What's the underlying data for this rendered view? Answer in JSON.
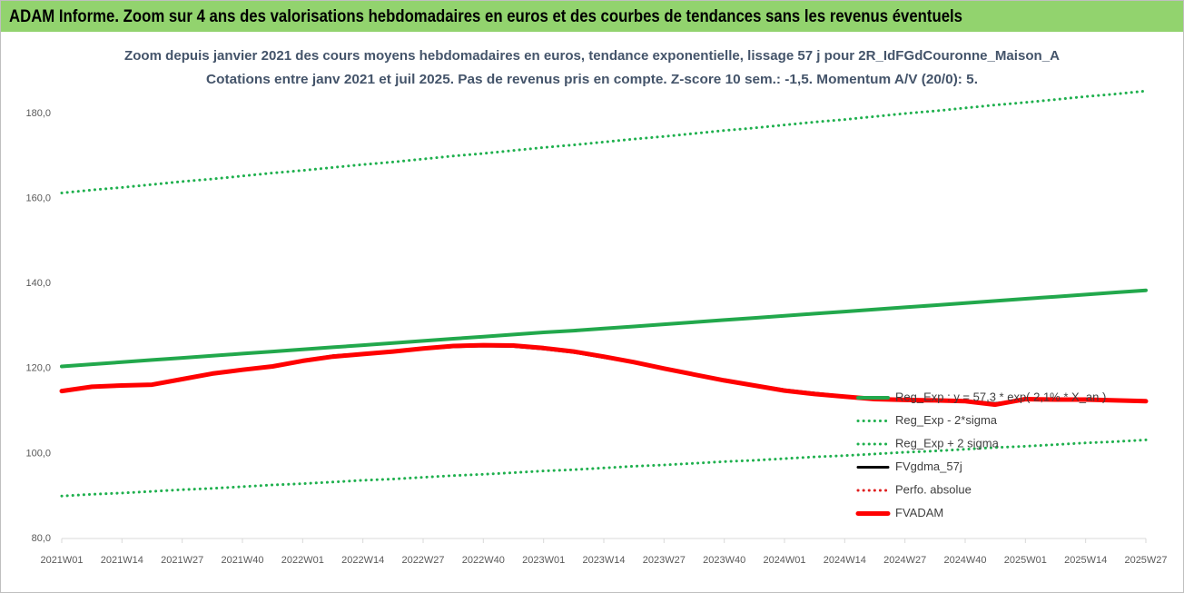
{
  "header": {
    "title": "ADAM Informe. Zoom sur 4 ans des valorisations hebdomadaires en euros et des courbes de tendances sans les revenus éventuels"
  },
  "chart_data": {
    "type": "line",
    "title": "Zoom depuis janvier 2021 des cours moyens hebdomadaires en euros, tendance exponentielle, lissage 57 j pour 2R_IdFGdCouronne_Maison_A",
    "subtitle": "Cotations entre janv 2021 et juil 2025. Pas de revenus pris en compte. Z-score 10 sem.: -1,5. Momentum A/V (20/0): 5.",
    "categories": [
      "2021W01",
      null,
      "2021W14",
      null,
      "2021W27",
      null,
      "2021W40",
      null,
      "2022W01",
      null,
      "2022W14",
      null,
      "2022W27",
      null,
      "2022W40",
      null,
      "2023W01",
      null,
      "2023W14",
      null,
      "2023W27",
      null,
      "2023W40",
      null,
      "2024W01",
      null,
      "2024W14",
      null,
      "2024W27",
      null,
      "2024W40",
      null,
      "2025W01",
      null,
      "2025W14",
      null,
      "2025W27"
    ],
    "ylim": [
      80,
      180
    ],
    "yticks": [
      {
        "value": 80,
        "label": "80,0"
      },
      {
        "value": 100,
        "label": "100,0"
      },
      {
        "value": 120,
        "label": "120,0"
      },
      {
        "value": 140,
        "label": "140,0"
      },
      {
        "value": 160,
        "label": "160,0"
      },
      {
        "value": 180,
        "label": "180,0"
      }
    ],
    "grid": false,
    "legend": "right",
    "series": [
      {
        "name": "Reg_Exp : y = 57,3 * exp( 2,1% * X_an )",
        "color": "#22a84c",
        "style": "solid",
        "values": [
          120.5,
          121.0,
          121.5,
          122.0,
          122.5,
          123.0,
          123.5,
          124.0,
          124.5,
          125.0,
          125.5,
          126.0,
          126.5,
          127.0,
          127.5,
          128.0,
          128.5,
          128.9,
          129.4,
          129.9,
          130.4,
          130.9,
          131.4,
          131.9,
          132.4,
          132.9,
          133.4,
          133.9,
          134.4,
          134.9,
          135.4,
          135.9,
          136.4,
          136.9,
          137.4,
          137.9,
          138.4
        ]
      },
      {
        "name": "Reg_Exp - 2*sigma",
        "color": "#1fb04e",
        "style": "dotted",
        "values": [
          90.0,
          90.4,
          90.7,
          91.1,
          91.5,
          91.8,
          92.2,
          92.6,
          92.9,
          93.3,
          93.7,
          94.0,
          94.4,
          94.8,
          95.1,
          95.5,
          95.9,
          96.2,
          96.6,
          97.0,
          97.3,
          97.7,
          98.1,
          98.4,
          98.8,
          99.2,
          99.5,
          99.9,
          100.3,
          100.6,
          101.0,
          101.4,
          101.7,
          102.1,
          102.5,
          102.8,
          103.2
        ]
      },
      {
        "name": "Reg_Exp + 2 sigma",
        "color": "#1fb04e",
        "style": "dotted",
        "values": [
          161.3,
          162.0,
          162.6,
          163.3,
          164.0,
          164.6,
          165.3,
          166.0,
          166.6,
          167.3,
          168.0,
          168.6,
          169.3,
          170.0,
          170.6,
          171.3,
          172.0,
          172.6,
          173.3,
          174.0,
          174.6,
          175.3,
          176.0,
          176.6,
          177.3,
          178.0,
          178.6,
          179.3,
          180.0,
          180.6,
          181.3,
          182.0,
          182.6,
          183.3,
          184.0,
          184.6,
          185.3
        ]
      },
      {
        "name": "FVgdma_57j",
        "color": "#000000",
        "style": "solid",
        "values": [
          114.6,
          115.8,
          116.1,
          116.3,
          117.6,
          118.9,
          119.8,
          120.6,
          121.9,
          123.0,
          123.5,
          124.1,
          124.6,
          125.1,
          125.3,
          125.2,
          124.6,
          123.8,
          122.6,
          121.4,
          120.0,
          118.6,
          117.3,
          116.1,
          115.0,
          114.2,
          113.5,
          112.9,
          112.6,
          112.5,
          112.4,
          111.8,
          112.6,
          112.7,
          112.7,
          112.5,
          112.3
        ]
      },
      {
        "name": "Perfo. absolue",
        "color": "#e02020",
        "style": "dotted",
        "values": [
          null,
          null,
          null,
          null,
          null,
          null,
          null,
          null,
          null,
          null,
          null,
          null,
          null,
          null,
          null,
          null,
          null,
          null,
          null,
          null,
          null,
          null,
          null,
          null,
          null,
          null,
          null,
          null,
          null,
          null,
          null,
          null,
          null,
          null,
          null,
          null,
          null
        ]
      },
      {
        "name": "FVADAM",
        "color": "#ff0000",
        "style": "solid",
        "values": [
          114.7,
          115.7,
          116.0,
          116.2,
          117.5,
          118.8,
          119.7,
          120.5,
          121.8,
          122.8,
          123.4,
          124.0,
          124.7,
          125.3,
          125.5,
          125.4,
          124.8,
          124.0,
          122.8,
          121.5,
          120.0,
          118.6,
          117.2,
          116.0,
          114.8,
          114.0,
          113.4,
          112.8,
          112.6,
          112.5,
          112.3,
          111.5,
          112.8,
          112.7,
          112.7,
          112.5,
          112.3
        ]
      }
    ]
  }
}
